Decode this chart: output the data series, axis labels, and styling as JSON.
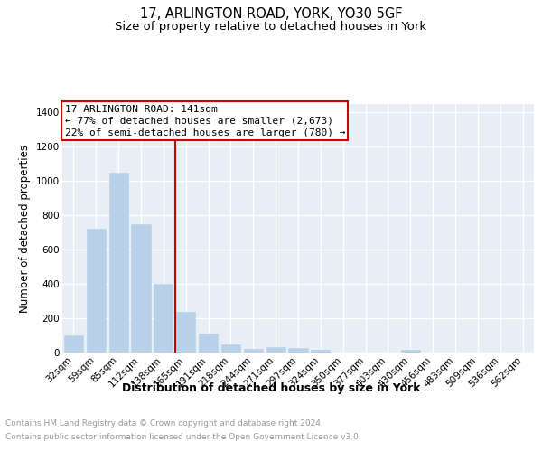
{
  "title": "17, ARLINGTON ROAD, YORK, YO30 5GF",
  "subtitle": "Size of property relative to detached houses in York",
  "xlabel": "Distribution of detached houses by size in York",
  "ylabel": "Number of detached properties",
  "categories": [
    "32sqm",
    "59sqm",
    "85sqm",
    "112sqm",
    "138sqm",
    "165sqm",
    "191sqm",
    "218sqm",
    "244sqm",
    "271sqm",
    "297sqm",
    "324sqm",
    "350sqm",
    "377sqm",
    "403sqm",
    "430sqm",
    "456sqm",
    "483sqm",
    "509sqm",
    "536sqm",
    "562sqm"
  ],
  "values": [
    100,
    725,
    1050,
    750,
    400,
    235,
    110,
    50,
    20,
    30,
    25,
    15,
    0,
    0,
    0,
    15,
    0,
    0,
    0,
    0,
    0
  ],
  "bar_color": "#b8d0e8",
  "bar_edge_color": "#b8d0e8",
  "vline_color": "#cc0000",
  "vline_pos": 4.52,
  "annotation_line1": "17 ARLINGTON ROAD: 141sqm",
  "annotation_line2": "← 77% of detached houses are smaller (2,673)",
  "annotation_line3": "22% of semi-detached houses are larger (780) →",
  "annotation_box_edgecolor": "#cc0000",
  "ylim": [
    0,
    1450
  ],
  "yticks": [
    0,
    200,
    400,
    600,
    800,
    1000,
    1200,
    1400
  ],
  "bg_color": "#e8eef5",
  "footer_line1": "Contains HM Land Registry data © Crown copyright and database right 2024.",
  "footer_line2": "Contains public sector information licensed under the Open Government Licence v3.0.",
  "title_fontsize": 10.5,
  "subtitle_fontsize": 9.5,
  "ylabel_fontsize": 8.5,
  "xlabel_fontsize": 9,
  "tick_fontsize": 7.5,
  "ann_fontsize": 8,
  "footer_fontsize": 6.5
}
